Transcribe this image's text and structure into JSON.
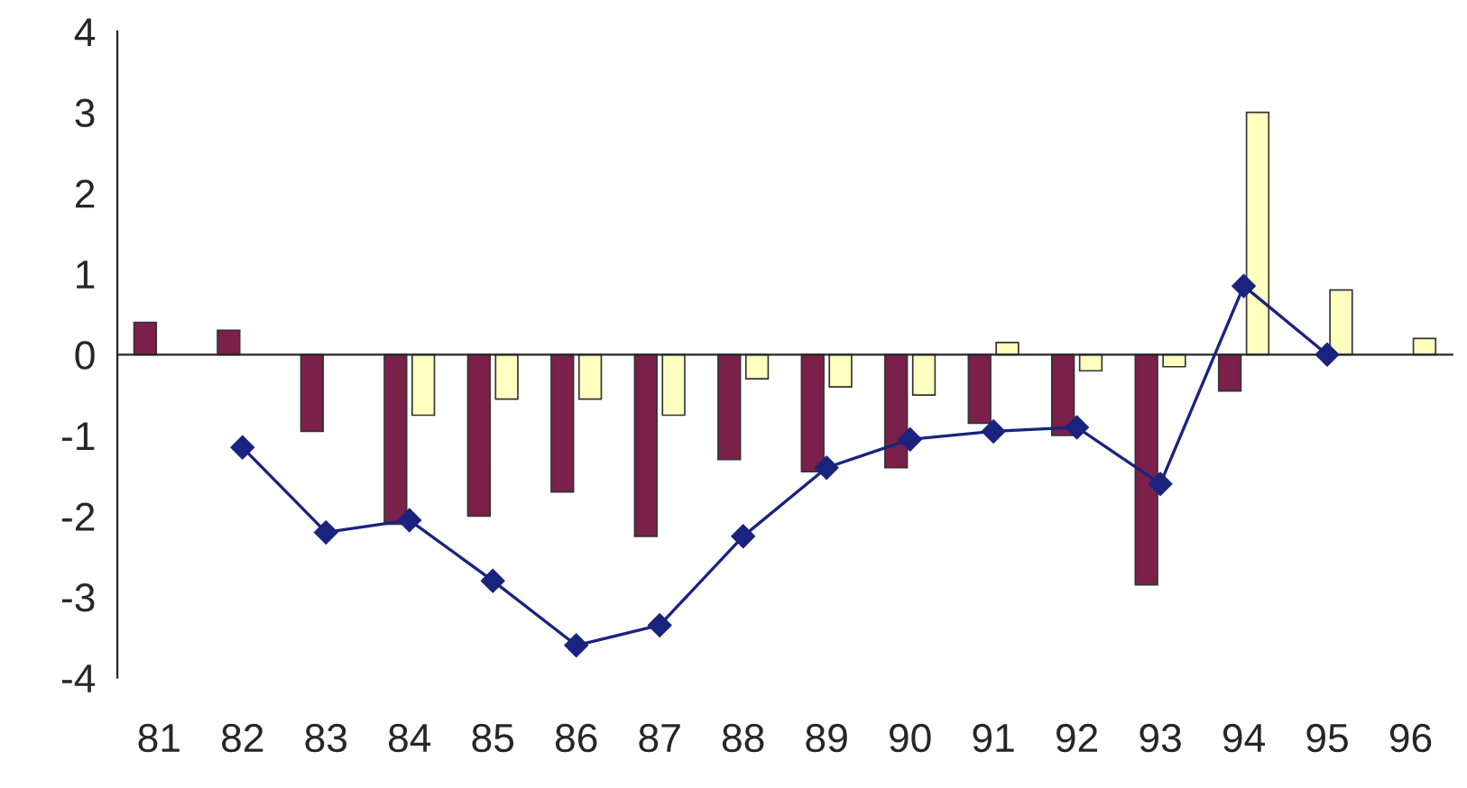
{
  "chart_data": {
    "type": "bar",
    "categories": [
      "81",
      "82",
      "83",
      "84",
      "85",
      "86",
      "87",
      "88",
      "89",
      "90",
      "91",
      "92",
      "93",
      "94",
      "95",
      "96"
    ],
    "series": [
      {
        "color": "#7b1f4b",
        "values": [
          0.4,
          0.3,
          -0.95,
          -2.1,
          -2.0,
          -1.7,
          -2.25,
          -1.3,
          -1.45,
          -1.4,
          -0.85,
          -1.0,
          -2.85,
          -0.45,
          null,
          null
        ]
      },
      {
        "color": "#ffffc0",
        "values": [
          null,
          null,
          null,
          -0.75,
          -0.55,
          -0.55,
          -0.75,
          -0.3,
          -0.4,
          -0.5,
          0.15,
          -0.2,
          -0.15,
          3.0,
          0.8,
          0.2
        ]
      },
      {
        "type": "line",
        "color": "#1a237e",
        "marker": "diamond",
        "values": [
          null,
          -1.15,
          -2.2,
          -2.05,
          -2.8,
          -3.6,
          -3.35,
          -2.25,
          -1.4,
          -1.05,
          -0.95,
          -0.9,
          -1.6,
          0.85,
          0.0,
          null
        ]
      }
    ],
    "ylim": [
      -4,
      4
    ],
    "yticks": [
      -4,
      -3,
      -2,
      -1,
      0,
      1,
      2,
      3,
      4
    ]
  }
}
